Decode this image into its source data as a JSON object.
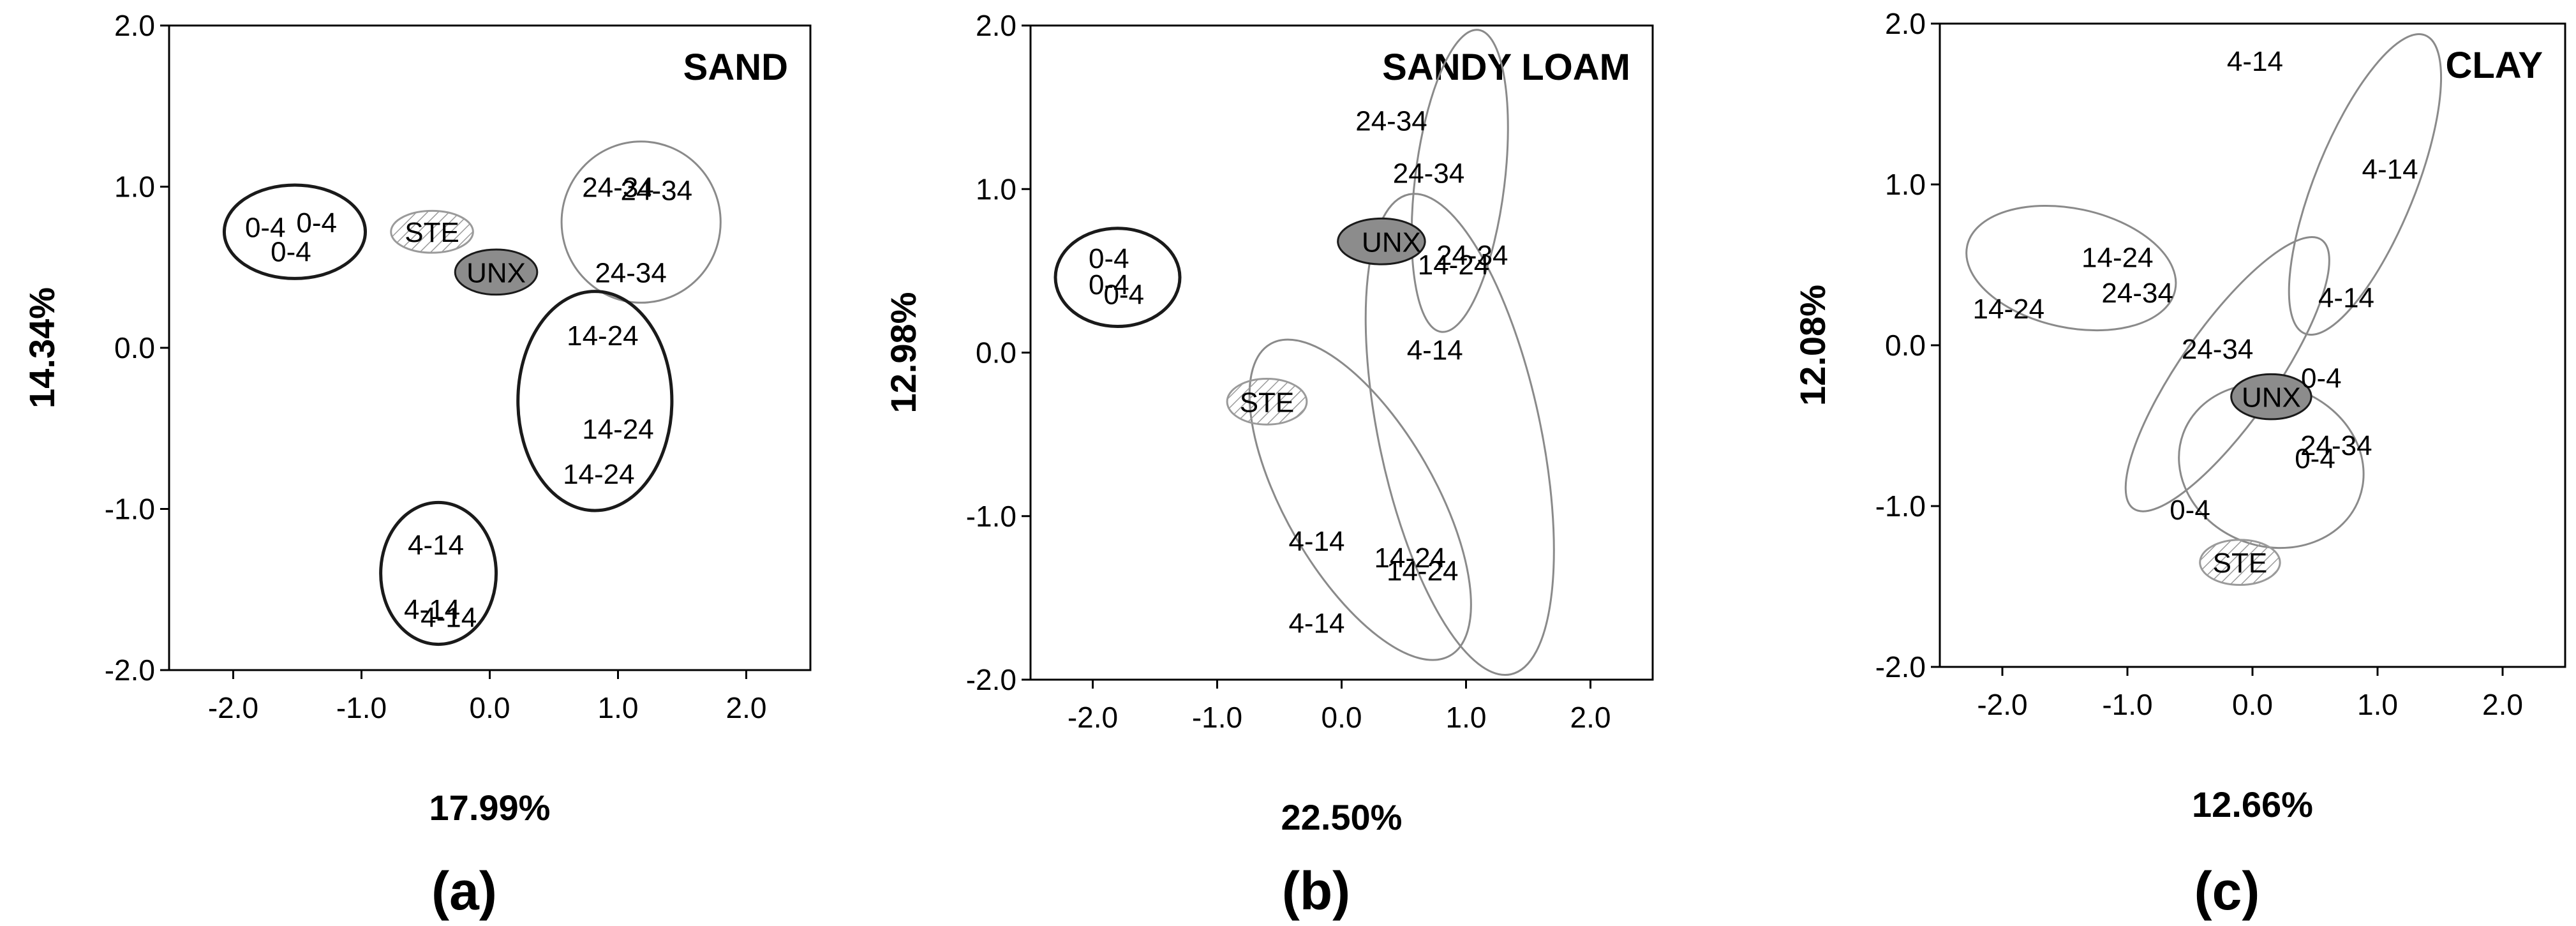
{
  "chart_data": [
    {
      "type": "scatter",
      "panel_label": "(a)",
      "title": "SAND",
      "xlabel": "17.99%",
      "ylabel": "14.34%",
      "xlim": [
        -2.5,
        2.5
      ],
      "ylim": [
        -2.0,
        2.0
      ],
      "x_ticks": [
        "-2.0",
        "-1.0",
        "0.0",
        "1.0",
        "2.0"
      ],
      "y_ticks": [
        "2.0",
        "1.0",
        "0.0",
        "-1.0",
        "-2.0"
      ],
      "grid": false,
      "points": [
        {
          "label": "0-4",
          "x": -1.75,
          "y": 0.75
        },
        {
          "label": "0-4",
          "x": -1.35,
          "y": 0.78
        },
        {
          "label": "0-4",
          "x": -1.55,
          "y": 0.6
        },
        {
          "label": "STE",
          "x": -0.45,
          "y": 0.72
        },
        {
          "label": "UNX",
          "x": 0.05,
          "y": 0.47
        },
        {
          "label": "24-34",
          "x": 1.0,
          "y": 1.0
        },
        {
          "label": "24-34",
          "x": 1.3,
          "y": 0.98
        },
        {
          "label": "24-34",
          "x": 1.1,
          "y": 0.47
        },
        {
          "label": "14-24",
          "x": 0.88,
          "y": 0.08
        },
        {
          "label": "14-24",
          "x": 1.0,
          "y": -0.5
        },
        {
          "label": "14-24",
          "x": 0.85,
          "y": -0.78
        },
        {
          "label": "4-14",
          "x": -0.42,
          "y": -1.22
        },
        {
          "label": "4-14",
          "x": -0.45,
          "y": -1.62
        },
        {
          "label": "4-14",
          "x": -0.32,
          "y": -1.67
        }
      ],
      "ellipses": [
        {
          "group": "0-4",
          "cx": -1.52,
          "cy": 0.72,
          "rx": 0.55,
          "ry": 0.29,
          "angle": 0,
          "style": "dark-outline"
        },
        {
          "group": "STE",
          "cx": -0.45,
          "cy": 0.72,
          "rx": 0.32,
          "ry": 0.13,
          "angle": 0,
          "style": "hatched"
        },
        {
          "group": "UNX",
          "cx": 0.05,
          "cy": 0.47,
          "rx": 0.32,
          "ry": 0.14,
          "angle": 0,
          "style": "filled"
        },
        {
          "group": "24-34",
          "cx": 1.18,
          "cy": 0.78,
          "rx": 0.62,
          "ry": 0.5,
          "angle": 0,
          "style": "light-outline"
        },
        {
          "group": "14-24",
          "cx": 0.82,
          "cy": -0.33,
          "rx": 0.6,
          "ry": 0.68,
          "angle": 0,
          "style": "dark-outline"
        },
        {
          "group": "4-14",
          "cx": -0.4,
          "cy": -1.4,
          "rx": 0.45,
          "ry": 0.44,
          "angle": 0,
          "style": "dark-outline"
        }
      ]
    },
    {
      "type": "scatter",
      "panel_label": "(b)",
      "title": "SANDY LOAM",
      "xlabel": "22.50%",
      "ylabel": "12.98%",
      "xlim": [
        -2.5,
        2.5
      ],
      "ylim": [
        -2.0,
        2.0
      ],
      "x_ticks": [
        "-2.0",
        "-1.0",
        "0.0",
        "1.0",
        "2.0"
      ],
      "y_ticks": [
        "2.0",
        "1.0",
        "0.0",
        "-1.0",
        "-2.0"
      ],
      "grid": false,
      "points": [
        {
          "label": "0-4",
          "x": -1.87,
          "y": 0.58
        },
        {
          "label": "0-4",
          "x": -1.87,
          "y": 0.42
        },
        {
          "label": "0-4",
          "x": -1.75,
          "y": 0.36
        },
        {
          "label": "STE",
          "x": -0.6,
          "y": -0.3
        },
        {
          "label": "UNX",
          "x": 0.4,
          "y": 0.68
        },
        {
          "label": "24-34",
          "x": 0.4,
          "y": 1.42
        },
        {
          "label": "24-34",
          "x": 0.7,
          "y": 1.1
        },
        {
          "label": "24-34",
          "x": 1.05,
          "y": 0.6
        },
        {
          "label": "14-24",
          "x": 0.9,
          "y": 0.54
        },
        {
          "label": "4-14",
          "x": 0.75,
          "y": 0.02
        },
        {
          "label": "4-14",
          "x": -0.2,
          "y": -1.15
        },
        {
          "label": "4-14",
          "x": -0.2,
          "y": -1.65
        },
        {
          "label": "14-24",
          "x": 0.55,
          "y": -1.25
        },
        {
          "label": "14-24",
          "x": 0.65,
          "y": -1.33
        }
      ],
      "ellipses": [
        {
          "group": "0-4",
          "cx": -1.8,
          "cy": 0.46,
          "rx": 0.5,
          "ry": 0.3,
          "angle": 0,
          "style": "dark-outline"
        },
        {
          "group": "STE",
          "cx": -0.6,
          "cy": -0.3,
          "rx": 0.32,
          "ry": 0.14,
          "angle": 0,
          "style": "hatched"
        },
        {
          "group": "UNX",
          "cx": 0.32,
          "cy": 0.68,
          "rx": 0.35,
          "ry": 0.14,
          "angle": 0,
          "style": "filled"
        },
        {
          "group": "24-34",
          "cx": 0.95,
          "cy": 1.05,
          "rx": 0.36,
          "ry": 0.93,
          "angle": -7,
          "style": "light-outline"
        },
        {
          "group": "14-24",
          "cx": 0.95,
          "cy": -0.5,
          "rx": 0.65,
          "ry": 1.5,
          "angle": 12,
          "style": "light-outline"
        },
        {
          "group": "4-14",
          "cx": 0.15,
          "cy": -0.9,
          "rx": 0.6,
          "ry": 1.1,
          "angle": 30,
          "style": "light-outline"
        }
      ]
    },
    {
      "type": "scatter",
      "panel_label": "(c)",
      "title": "CLAY",
      "xlabel": "12.66%",
      "ylabel": "12.08%",
      "xlim": [
        -2.5,
        2.5
      ],
      "ylim": [
        -2.0,
        2.0
      ],
      "x_ticks": [
        "-2.0",
        "-1.0",
        "0.0",
        "1.0",
        "2.0"
      ],
      "y_ticks": [
        "2.0",
        "1.0",
        "0.0",
        "-1.0",
        "-2.0"
      ],
      "grid": false,
      "points": [
        {
          "label": "4-14",
          "x": 0.02,
          "y": 1.77
        },
        {
          "label": "4-14",
          "x": 1.1,
          "y": 1.1
        },
        {
          "label": "4-14",
          "x": 0.75,
          "y": 0.3
        },
        {
          "label": "14-24",
          "x": -1.08,
          "y": 0.55
        },
        {
          "label": "24-34",
          "x": -0.92,
          "y": 0.33
        },
        {
          "label": "14-24",
          "x": -1.95,
          "y": 0.23
        },
        {
          "label": "24-34",
          "x": -0.28,
          "y": -0.02
        },
        {
          "label": "0-4",
          "x": 0.55,
          "y": -0.2
        },
        {
          "label": "UNX",
          "x": 0.15,
          "y": -0.32
        },
        {
          "label": "24-34",
          "x": 0.67,
          "y": -0.62
        },
        {
          "label": "0-4",
          "x": 0.5,
          "y": -0.7
        },
        {
          "label": "0-4",
          "x": -0.5,
          "y": -1.02
        },
        {
          "label": "STE",
          "x": -0.1,
          "y": -1.35
        }
      ],
      "ellipses": [
        {
          "group": "4-14",
          "cx": 0.9,
          "cy": 1.0,
          "rx": 0.4,
          "ry": 1.0,
          "angle": -22,
          "style": "light-outline"
        },
        {
          "group": "14-24",
          "cx": -1.45,
          "cy": 0.48,
          "rx": 0.85,
          "ry": 0.37,
          "angle": -12,
          "style": "light-outline"
        },
        {
          "group": "24-34",
          "cx": -0.2,
          "cy": -0.18,
          "rx": 0.38,
          "ry": 1.02,
          "angle": -35,
          "style": "light-outline"
        },
        {
          "group": "0-4",
          "cx": 0.15,
          "cy": -0.75,
          "rx": 0.75,
          "ry": 0.5,
          "angle": -20,
          "style": "light-outline"
        },
        {
          "group": "UNX",
          "cx": 0.15,
          "cy": -0.32,
          "rx": 0.32,
          "ry": 0.14,
          "angle": 0,
          "style": "filled"
        },
        {
          "group": "STE",
          "cx": -0.1,
          "cy": -1.35,
          "rx": 0.32,
          "ry": 0.14,
          "angle": 0,
          "style": "hatched"
        }
      ]
    }
  ],
  "colors": {
    "axis": "#000000",
    "text": "#000000",
    "dark_outline": "#1a1a1a",
    "light_outline": "#8a8a8a",
    "unx_fill": "#8c8c8c",
    "ste_hatch": "#9a9a9a",
    "background": "#ffffff"
  }
}
